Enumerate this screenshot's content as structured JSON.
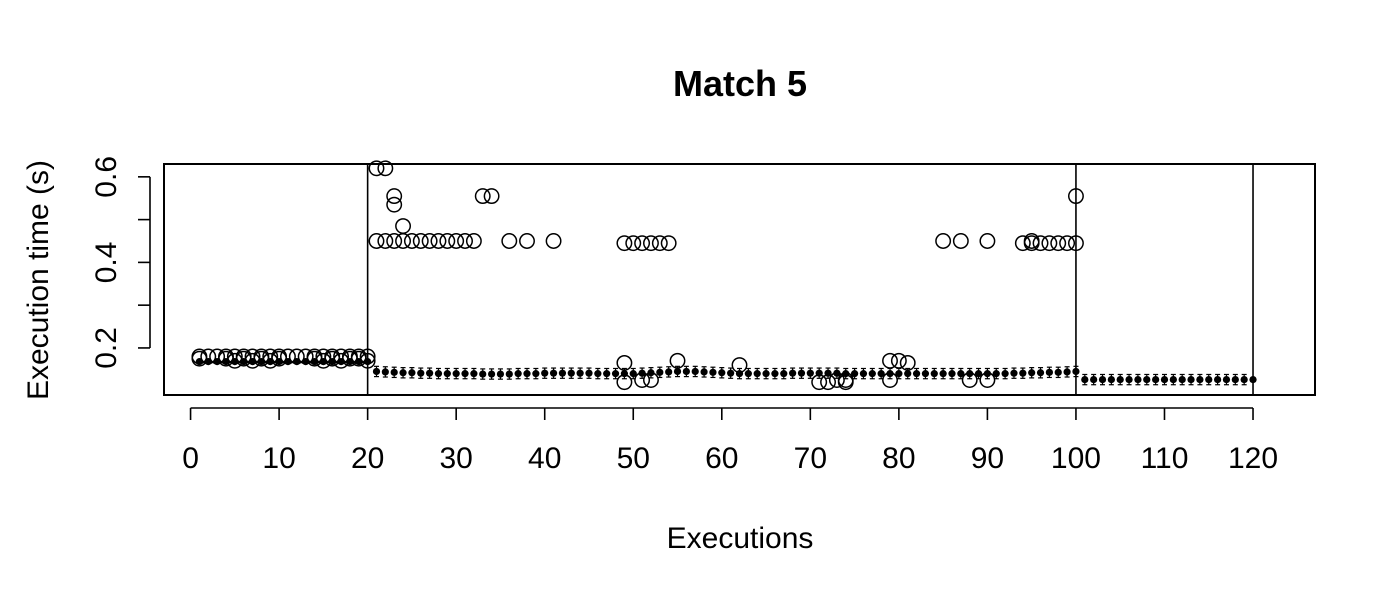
{
  "chart_data": {
    "type": "scatter",
    "title": "Match 5",
    "xlabel": "Executions",
    "ylabel": "Execution time (s)",
    "xlim": [
      -3,
      127
    ],
    "ylim": [
      0.09,
      0.63
    ],
    "xticks": [
      0,
      10,
      20,
      30,
      40,
      50,
      60,
      70,
      80,
      90,
      100,
      110,
      120
    ],
    "yticks": [
      0.2,
      0.4,
      0.6
    ],
    "yticks_minor": [
      0.3,
      0.5
    ],
    "grid": false,
    "legend": "none",
    "vlines": [
      20,
      100,
      120
    ],
    "observations": {
      "x": [
        1,
        1,
        2,
        3,
        4,
        4,
        5,
        5,
        6,
        6,
        7,
        7,
        8,
        8,
        9,
        9,
        10,
        10,
        11,
        12,
        13,
        14,
        14,
        15,
        15,
        16,
        16,
        17,
        17,
        18,
        18,
        19,
        19,
        20,
        20,
        21,
        21,
        22,
        22,
        23,
        23,
        23,
        24,
        24,
        25,
        26,
        27,
        28,
        29,
        30,
        31,
        32,
        33,
        34,
        36,
        38,
        41,
        49,
        49,
        49,
        50,
        51,
        51,
        52,
        52,
        53,
        54,
        55,
        62,
        71,
        72,
        73,
        74,
        74,
        79,
        79,
        80,
        81,
        85,
        87,
        88,
        90,
        90,
        94,
        95,
        95,
        96,
        97,
        98,
        99,
        100,
        100
      ],
      "y": [
        0.18,
        0.175,
        0.18,
        0.18,
        0.175,
        0.18,
        0.17,
        0.18,
        0.175,
        0.18,
        0.17,
        0.18,
        0.175,
        0.18,
        0.17,
        0.18,
        0.175,
        0.18,
        0.18,
        0.18,
        0.18,
        0.175,
        0.18,
        0.17,
        0.18,
        0.175,
        0.18,
        0.17,
        0.18,
        0.175,
        0.18,
        0.175,
        0.18,
        0.17,
        0.18,
        0.62,
        0.45,
        0.62,
        0.45,
        0.555,
        0.535,
        0.45,
        0.485,
        0.45,
        0.45,
        0.45,
        0.45,
        0.45,
        0.45,
        0.45,
        0.45,
        0.45,
        0.555,
        0.555,
        0.45,
        0.45,
        0.45,
        0.445,
        0.165,
        0.12,
        0.445,
        0.445,
        0.125,
        0.445,
        0.125,
        0.445,
        0.445,
        0.17,
        0.16,
        0.12,
        0.12,
        0.125,
        0.12,
        0.125,
        0.17,
        0.125,
        0.17,
        0.165,
        0.45,
        0.45,
        0.125,
        0.45,
        0.125,
        0.445,
        0.45,
        0.445,
        0.445,
        0.445,
        0.445,
        0.445,
        0.445,
        0.555
      ]
    },
    "means": {
      "x": [
        1,
        2,
        3,
        4,
        5,
        6,
        7,
        8,
        9,
        10,
        11,
        12,
        13,
        14,
        15,
        16,
        17,
        18,
        19,
        20,
        21,
        22,
        23,
        24,
        25,
        26,
        27,
        28,
        29,
        30,
        31,
        32,
        33,
        34,
        35,
        36,
        37,
        38,
        39,
        40,
        41,
        42,
        43,
        44,
        45,
        46,
        47,
        48,
        49,
        50,
        51,
        52,
        53,
        54,
        55,
        56,
        57,
        58,
        59,
        60,
        61,
        62,
        63,
        64,
        65,
        66,
        67,
        68,
        69,
        70,
        71,
        72,
        73,
        74,
        75,
        76,
        77,
        78,
        79,
        80,
        81,
        82,
        83,
        84,
        85,
        86,
        87,
        88,
        89,
        90,
        91,
        92,
        93,
        94,
        95,
        96,
        97,
        98,
        99,
        100,
        101,
        102,
        103,
        104,
        105,
        106,
        107,
        108,
        109,
        110,
        111,
        112,
        113,
        114,
        115,
        116,
        117,
        118,
        119,
        120
      ],
      "y": [
        0.168,
        0.168,
        0.168,
        0.168,
        0.168,
        0.168,
        0.168,
        0.168,
        0.168,
        0.168,
        0.168,
        0.168,
        0.168,
        0.168,
        0.168,
        0.168,
        0.168,
        0.168,
        0.168,
        0.168,
        0.145,
        0.144,
        0.143,
        0.142,
        0.142,
        0.141,
        0.141,
        0.14,
        0.14,
        0.14,
        0.14,
        0.14,
        0.139,
        0.139,
        0.139,
        0.139,
        0.14,
        0.14,
        0.14,
        0.141,
        0.141,
        0.141,
        0.141,
        0.141,
        0.141,
        0.14,
        0.14,
        0.14,
        0.14,
        0.14,
        0.141,
        0.142,
        0.143,
        0.144,
        0.145,
        0.145,
        0.145,
        0.144,
        0.143,
        0.142,
        0.141,
        0.14,
        0.14,
        0.14,
        0.14,
        0.14,
        0.14,
        0.141,
        0.141,
        0.141,
        0.141,
        0.141,
        0.141,
        0.14,
        0.14,
        0.14,
        0.14,
        0.14,
        0.14,
        0.14,
        0.14,
        0.14,
        0.14,
        0.14,
        0.14,
        0.14,
        0.14,
        0.14,
        0.14,
        0.14,
        0.14,
        0.14,
        0.141,
        0.141,
        0.142,
        0.142,
        0.143,
        0.143,
        0.144,
        0.145,
        0.126,
        0.126,
        0.126,
        0.126,
        0.126,
        0.126,
        0.126,
        0.126,
        0.126,
        0.126,
        0.126,
        0.126,
        0.126,
        0.126,
        0.126,
        0.126,
        0.126,
        0.126,
        0.126,
        0.126
      ],
      "err": 0.012,
      "err_note": "half-width of error bars, shown on executions 21-119"
    }
  }
}
